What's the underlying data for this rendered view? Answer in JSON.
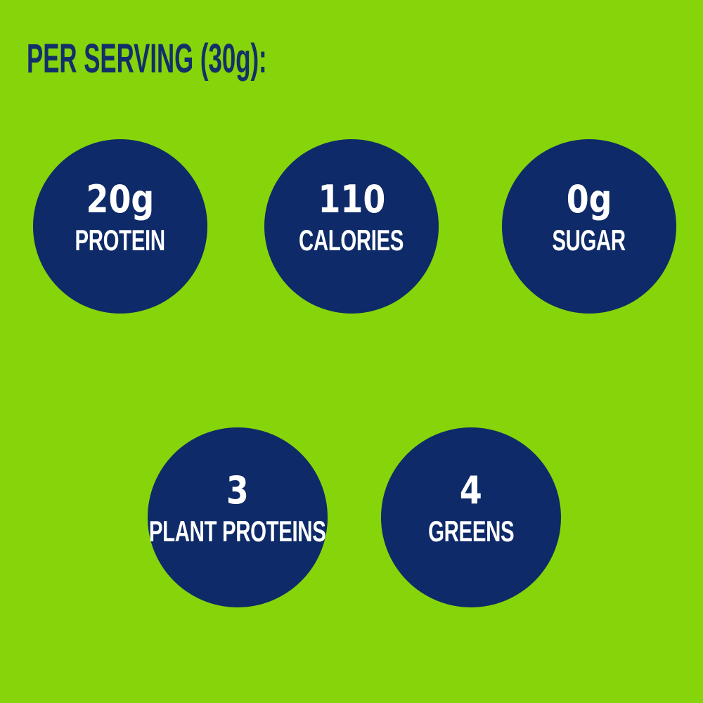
{
  "colors": {
    "background": "#86d40a",
    "circle_fill": "#0e2a68",
    "title_text": "#132f6a",
    "circle_text": "#ffffff"
  },
  "header": {
    "title": "PER SERVING (30g):"
  },
  "stats": [
    {
      "value": "20g",
      "label": "PROTEIN"
    },
    {
      "value": "110",
      "label": "CALORIES"
    },
    {
      "value": "0g",
      "label": "SUGAR"
    },
    {
      "value": "3",
      "label": "PLANT PROTEINS"
    },
    {
      "value": "4",
      "label": "GREENS"
    }
  ]
}
